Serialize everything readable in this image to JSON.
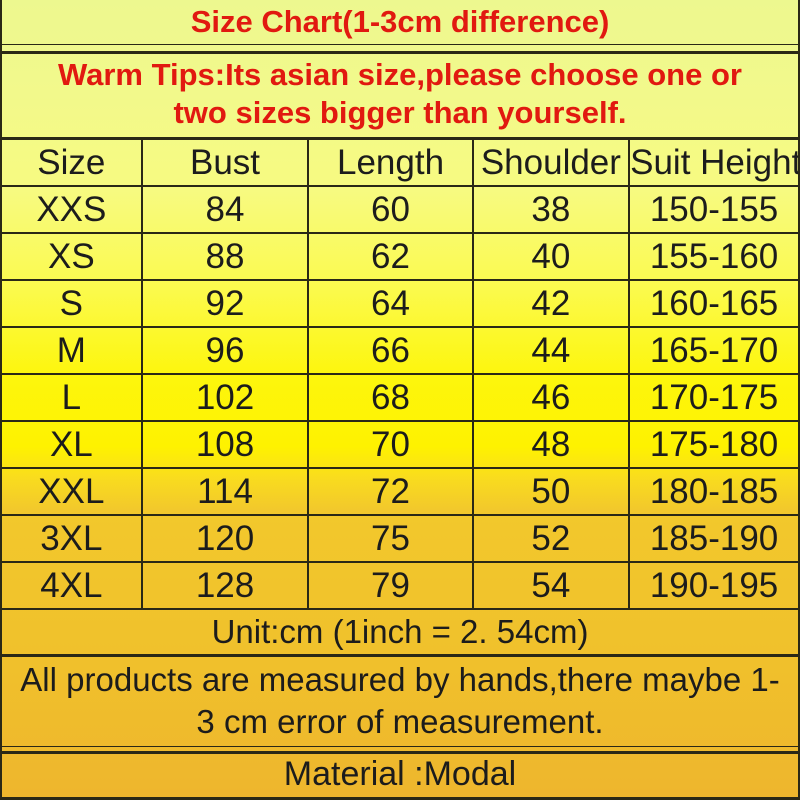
{
  "title": "Size Chart(1-3cm difference)",
  "warm_tips": {
    "line1": "Warm Tips:Its asian size,please choose one or",
    "line2": "two sizes bigger than yourself."
  },
  "chart_data": {
    "type": "table",
    "title": "Size Chart(1-3cm difference)",
    "columns": [
      "Size",
      "Bust",
      "Length",
      "Shoulder",
      "Suit Height"
    ],
    "rows": [
      [
        "XXS",
        "84",
        "60",
        "38",
        "150-155"
      ],
      [
        "XS",
        "88",
        "62",
        "40",
        "155-160"
      ],
      [
        "S",
        "92",
        "64",
        "42",
        "160-165"
      ],
      [
        "M",
        "96",
        "66",
        "44",
        "165-170"
      ],
      [
        "L",
        "102",
        "68",
        "46",
        "170-175"
      ],
      [
        "XL",
        "108",
        "70",
        "48",
        "175-180"
      ],
      [
        "XXL",
        "114",
        "72",
        "50",
        "180-185"
      ],
      [
        "3XL",
        "120",
        "75",
        "52",
        "185-190"
      ],
      [
        "4XL",
        "128",
        "79",
        "54",
        "190-195"
      ]
    ],
    "unit": "cm"
  },
  "footer": {
    "unit_note": "Unit:cm (1inch = 2. 54cm)",
    "measurement_note_line1": "All products are measured by hands,there maybe 1-",
    "measurement_note_line2": "3 cm error of measurement.",
    "material_note": "Material :Modal"
  },
  "colors": {
    "accent_red": "#e11910",
    "text_black": "#1c1c1c",
    "bg_top_pale_yellow_green": "#edf88f",
    "bg_mid_bright_yellow": "#fef200",
    "bg_bottom_gold": "#eeb62d",
    "border_dark": "#2a2816"
  }
}
